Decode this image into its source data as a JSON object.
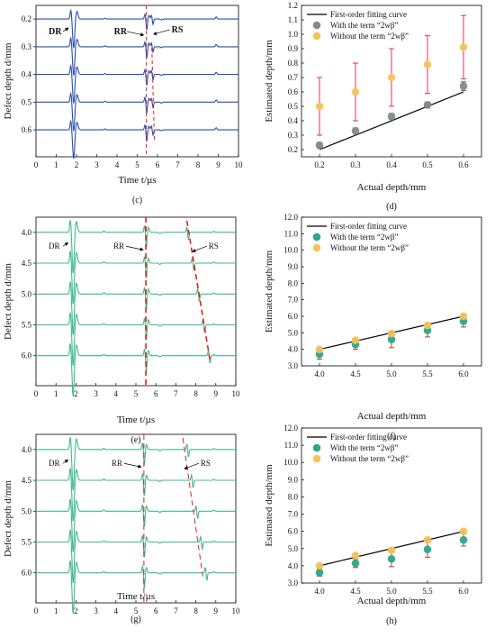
{
  "colors": {
    "blue": "#2b4ea8",
    "green": "#3fb88e",
    "red": "#e02020",
    "teal": "#2aa88a",
    "orange": "#f4c35a",
    "pink": "#d8336a",
    "black": "#000000"
  },
  "chart_data": [
    {
      "id": "c",
      "type": "line",
      "caption": "(c)",
      "xlabel": "Time t/µs",
      "ylabel": "Defect depth d/mm",
      "xlim": [
        0,
        10
      ],
      "xticks": [
        0,
        1,
        2,
        3,
        4,
        5,
        6,
        7,
        8,
        9,
        10
      ],
      "traces": [
        "0.2",
        "0.3",
        "0.4",
        "0.5",
        "0.6"
      ],
      "annotations": [
        "DR",
        "RR",
        "RS"
      ],
      "dashed_lines": [
        5.45,
        5.75
      ],
      "color": "blue"
    },
    {
      "id": "d",
      "type": "scatter",
      "caption": "(d)",
      "xlabel": "Actual depth/mm",
      "ylabel": "Estimated depth/mm",
      "xlim": [
        0.15,
        0.65
      ],
      "ylim": [
        0.15,
        1.2
      ],
      "xticks": [
        "0.2",
        "0.3",
        "0.4",
        "0.5",
        "0.6"
      ],
      "yticks": [
        "0.2",
        "0.3",
        "0.4",
        "0.5",
        "0.6",
        "0.7",
        "0.8",
        "0.9",
        "1.0",
        "1.1",
        "1.2"
      ],
      "x": [
        0.2,
        0.3,
        0.4,
        0.5,
        0.6
      ],
      "fit": [
        [
          0.2,
          0.2
        ],
        [
          0.6,
          0.6
        ]
      ],
      "series": [
        {
          "name": "With the term “2wβ”",
          "values": [
            0.23,
            0.33,
            0.43,
            0.51,
            0.64
          ],
          "err": [
            0.02,
            0.02,
            0.02,
            0.02,
            0.03
          ],
          "color": "gray"
        },
        {
          "name": "Without the term “2wβ”",
          "values": [
            0.5,
            0.6,
            0.7,
            0.79,
            0.91
          ],
          "err": [
            0.2,
            0.2,
            0.2,
            0.2,
            0.22
          ],
          "color": "orange"
        }
      ],
      "legend": [
        "First-order fitting curve",
        "With the term “2wβ”",
        "Without the term “2wβ”"
      ],
      "legend_position": "top-left"
    },
    {
      "id": "e",
      "type": "line",
      "caption": "(e)",
      "xlabel": "Time t/µs",
      "ylabel": "Defect depth d/mm",
      "xlim": [
        0,
        10
      ],
      "xticks": [
        0,
        1,
        2,
        3,
        4,
        5,
        6,
        7,
        8,
        9,
        10
      ],
      "traces": [
        "4.0",
        "4.5",
        "5.0",
        "5.5",
        "6.0"
      ],
      "annotations": [
        "DR",
        "RR",
        "RS"
      ],
      "dashed_lines": [
        5.5
      ],
      "color": "green"
    },
    {
      "id": "f",
      "type": "scatter",
      "caption": "(f)",
      "xlabel": "Actual depth/mm",
      "ylabel": "Estimated depth/mm",
      "xlim": [
        3.75,
        6.25
      ],
      "ylim": [
        3.0,
        12.0
      ],
      "xticks": [
        "4.0",
        "4.5",
        "5.0",
        "5.5",
        "6.0"
      ],
      "yticks": [
        "3.0",
        "4.0",
        "5.0",
        "6.0",
        "7.0",
        "8.0",
        "9.0",
        "10.0",
        "11.0",
        "12.0"
      ],
      "x": [
        4.0,
        4.5,
        5.0,
        5.5,
        6.0
      ],
      "fit": [
        [
          4.0,
          4.0
        ],
        [
          6.0,
          6.0
        ]
      ],
      "series": [
        {
          "name": "With the term “2wβ”",
          "values": [
            3.7,
            4.3,
            4.6,
            5.15,
            5.7
          ],
          "err": [
            0.3,
            0.3,
            0.5,
            0.4,
            0.35
          ],
          "color": "teal"
        },
        {
          "name": "Without the term “2wβ”",
          "values": [
            4.0,
            4.55,
            4.95,
            5.45,
            6.0
          ],
          "err": [
            0.1,
            0.1,
            0.1,
            0.1,
            0.1
          ],
          "color": "orange"
        }
      ],
      "legend": [
        "First-order fitting curve",
        "With the term “2wβ”",
        "Without the term “2wβ”"
      ],
      "legend_position": "top-left"
    },
    {
      "id": "g",
      "type": "line",
      "caption": "(g)",
      "xlabel": "Time t/µs",
      "ylabel": "Defect depth d/mm",
      "xlim": [
        0,
        10
      ],
      "xticks": [
        0,
        1,
        2,
        3,
        4,
        5,
        6,
        7,
        8,
        9,
        10
      ],
      "traces": [
        "4.0",
        "4.5",
        "5.0",
        "5.5",
        "6.0"
      ],
      "annotations": [
        "DR",
        "RR",
        "RS"
      ],
      "dashed_lines": [
        5.4
      ],
      "color": "green"
    },
    {
      "id": "h",
      "type": "scatter",
      "caption": "(h)",
      "xlabel": "Actual depth/mm",
      "ylabel": "Estimated depth/mm",
      "xlim": [
        3.75,
        6.25
      ],
      "ylim": [
        3.0,
        12.0
      ],
      "xticks": [
        "4.0",
        "4.5",
        "5.0",
        "5.5",
        "6.0"
      ],
      "yticks": [
        "3.0",
        "4.0",
        "5.0",
        "6.0",
        "7.0",
        "8.0",
        "9.0",
        "10.0",
        "11.0",
        "12.0"
      ],
      "x": [
        4.0,
        4.5,
        5.0,
        5.5,
        6.0
      ],
      "fit": [
        [
          4.0,
          4.0
        ],
        [
          6.0,
          6.0
        ]
      ],
      "series": [
        {
          "name": "With the term “2wβ”",
          "values": [
            3.6,
            4.15,
            4.4,
            4.95,
            5.5
          ],
          "err": [
            0.2,
            0.25,
            0.45,
            0.45,
            0.35
          ],
          "color": "teal"
        },
        {
          "name": "Without the term “2wβ”",
          "values": [
            4.0,
            4.6,
            4.9,
            5.5,
            6.0
          ],
          "err": [
            0.1,
            0.1,
            0.1,
            0.1,
            0.1
          ],
          "color": "orange"
        }
      ],
      "legend": [
        "First-order fitting curve",
        "With the term “2wβ”",
        "Without the term “2wβ”"
      ],
      "legend_position": "top-left"
    }
  ]
}
